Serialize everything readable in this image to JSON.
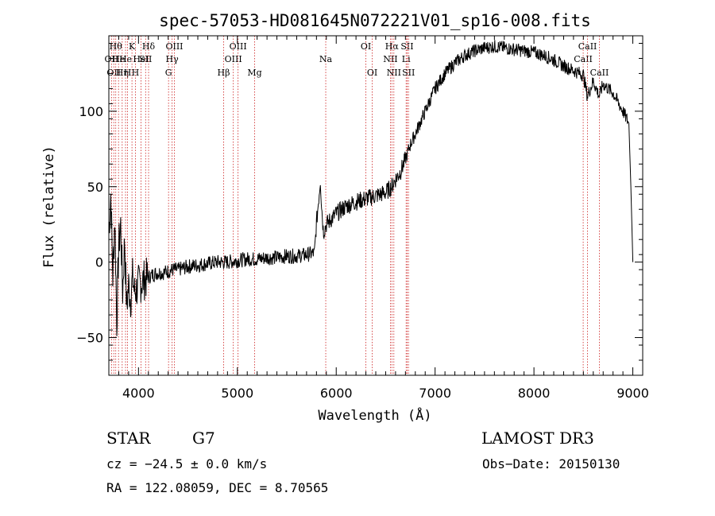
{
  "chart_data": {
    "type": "line",
    "title": "spec-57053-HD081645N072221V01_sp16-008.fits",
    "xlabel": "Wavelength (Å)",
    "ylabel": "Flux (relative)",
    "xlim": [
      3700,
      9100
    ],
    "ylim": [
      -75,
      150
    ],
    "xticks": [
      4000,
      5000,
      6000,
      7000,
      8000,
      9000
    ],
    "xtick_labels": [
      "4000",
      "5000",
      "6000",
      "7000",
      "8000",
      "9000"
    ],
    "yticks": [
      -50,
      0,
      50,
      100
    ],
    "ytick_labels": [
      "−50",
      "0",
      "50",
      "100"
    ],
    "grid": false,
    "line_color": "#000000",
    "marker_color": "#cc2020",
    "series": [
      {
        "x": [
          3700,
          3720,
          3740,
          3760,
          3780,
          3800,
          3820,
          3840,
          3860,
          3880,
          3900,
          3920,
          3940,
          3960,
          3980,
          4000,
          4050,
          4100,
          4150,
          4200,
          4250,
          4300,
          4350,
          4400,
          4500,
          4600,
          4700,
          4800,
          4900,
          5000,
          5100,
          5200,
          5300,
          5400,
          5500,
          5600,
          5700,
          5780,
          5800,
          5820,
          5840,
          5850,
          5870,
          5900,
          6000,
          6100,
          6200,
          6300,
          6400,
          6500,
          6560,
          6600,
          6650,
          6700,
          6750,
          6800,
          6900,
          7000,
          7100,
          7200,
          7300,
          7400,
          7500,
          7600,
          7700,
          7800,
          7900,
          8000,
          8100,
          8200,
          8300,
          8400,
          8500,
          8540,
          8600,
          8660,
          8700,
          8800,
          8900,
          8960,
          8980,
          9000
        ],
        "y": [
          20,
          45,
          -10,
          30,
          -40,
          10,
          25,
          -20,
          15,
          -30,
          -15,
          -25,
          -10,
          -20,
          -18,
          -15,
          -12,
          -10,
          -8,
          -7,
          -7,
          -6,
          -5,
          -5,
          -3,
          -2,
          -1,
          0,
          0,
          1,
          2,
          2,
          3,
          3,
          4,
          4,
          5,
          6,
          25,
          40,
          55,
          40,
          20,
          25,
          32,
          37,
          40,
          42,
          44,
          46,
          50,
          55,
          60,
          68,
          78,
          85,
          100,
          115,
          125,
          132,
          137,
          140,
          142,
          143,
          142,
          141,
          140,
          139,
          137,
          134,
          130,
          127,
          124,
          110,
          120,
          110,
          118,
          112,
          100,
          92,
          50,
          0
        ]
      }
    ],
    "line_markers": [
      {
        "x": 3727,
        "label": "OII",
        "row": 1
      },
      {
        "x": 3750,
        "label": "OII",
        "row": 2
      },
      {
        "x": 3770,
        "label": "Hθ",
        "row": 0
      },
      {
        "x": 3798,
        "label": "He",
        "row": 1
      },
      {
        "x": 3835,
        "label": "Hη",
        "row": 2
      },
      {
        "x": 3869,
        "label": "He",
        "row": 1
      },
      {
        "x": 3889,
        "label": "H",
        "row": 2
      },
      {
        "x": 3934,
        "label": "K",
        "row": 0
      },
      {
        "x": 3969,
        "label": "H",
        "row": 2
      },
      {
        "x": 4026,
        "label": "HeI",
        "row": 1
      },
      {
        "x": 4072,
        "label": "SII",
        "row": 1
      },
      {
        "x": 4102,
        "label": "Hδ",
        "row": 0
      },
      {
        "x": 4304,
        "label": "G",
        "row": 2
      },
      {
        "x": 4340,
        "label": "Hγ",
        "row": 1
      },
      {
        "x": 4363,
        "label": "OIII",
        "row": 0
      },
      {
        "x": 4861,
        "label": "Hβ",
        "row": 2
      },
      {
        "x": 4959,
        "label": "OIII",
        "row": 1
      },
      {
        "x": 5007,
        "label": "OIII",
        "row": 0
      },
      {
        "x": 5175,
        "label": "Mg",
        "row": 2
      },
      {
        "x": 5894,
        "label": "Na",
        "row": 1
      },
      {
        "x": 6300,
        "label": "OI",
        "row": 0
      },
      {
        "x": 6364,
        "label": "OI",
        "row": 2
      },
      {
        "x": 6548,
        "label": "NII",
        "row": 1
      },
      {
        "x": 6563,
        "label": "Hα",
        "row": 0
      },
      {
        "x": 6583,
        "label": "NII",
        "row": 2
      },
      {
        "x": 6707,
        "label": "Li",
        "row": 1
      },
      {
        "x": 6717,
        "label": "SII",
        "row": 0
      },
      {
        "x": 6731,
        "label": "SII",
        "row": 2
      },
      {
        "x": 8498,
        "label": "CaII",
        "row": 1
      },
      {
        "x": 8542,
        "label": "CaII",
        "row": 0
      },
      {
        "x": 8662,
        "label": "CaII",
        "row": 2
      }
    ]
  },
  "info": {
    "class": "STAR",
    "subclass": "G7",
    "survey": "LAMOST DR3",
    "cz": "cz = −24.5 ± 0.0 km/s",
    "obs_date": "Obs−Date: 20150130",
    "radec": "RA = 122.08059, DEC =   8.70565"
  }
}
